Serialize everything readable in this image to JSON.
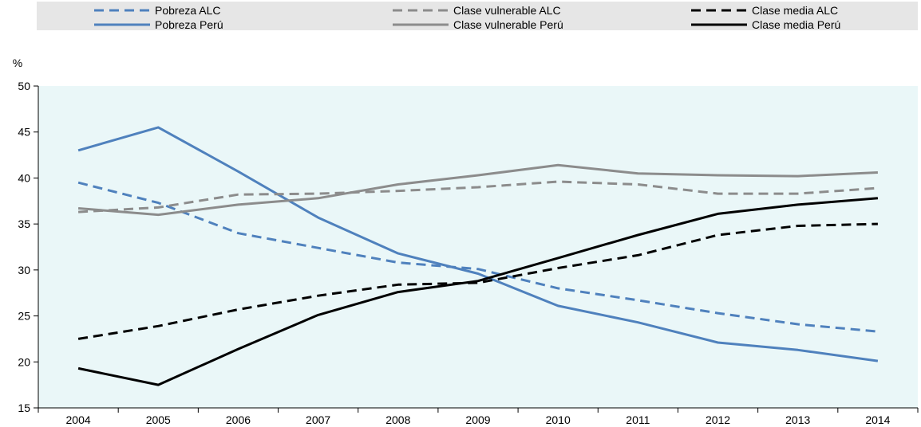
{
  "chart_data": {
    "type": "line",
    "ylabel": "%",
    "ylim": [
      15,
      50
    ],
    "yticks": [
      15,
      20,
      25,
      30,
      35,
      40,
      45,
      50
    ],
    "x": [
      "2004",
      "2005",
      "2006",
      "2007",
      "2008",
      "2009",
      "2010",
      "2011",
      "2012",
      "2013",
      "2014"
    ],
    "grid": false,
    "legend": "top",
    "background_color": "#eaf7f8",
    "legend_background_color": "#e6e6e6",
    "series": [
      {
        "name": "Pobreza ALC",
        "color": "#4f81bd",
        "dash": true,
        "values": [
          39.5,
          37.3,
          34.0,
          32.4,
          30.8,
          30.1,
          28.0,
          26.7,
          25.3,
          24.1,
          23.3
        ]
      },
      {
        "name": "Pobreza Perú",
        "color": "#4f81bd",
        "dash": false,
        "values": [
          43.0,
          45.5,
          40.7,
          35.7,
          31.8,
          29.6,
          26.1,
          24.3,
          22.1,
          21.3,
          20.1
        ]
      },
      {
        "name": "Clase vulnerable ALC",
        "color": "#8c8c8c",
        "dash": true,
        "values": [
          36.3,
          36.8,
          38.2,
          38.3,
          38.6,
          39.0,
          39.6,
          39.3,
          38.3,
          38.3,
          38.9
        ]
      },
      {
        "name": "Clase vulnerable Perú",
        "color": "#8c8c8c",
        "dash": false,
        "values": [
          36.7,
          36.0,
          37.1,
          37.8,
          39.3,
          40.3,
          41.4,
          40.5,
          40.3,
          40.2,
          40.6
        ]
      },
      {
        "name": "Clase media ALC",
        "color": "#000000",
        "dash": true,
        "values": [
          22.5,
          23.9,
          25.7,
          27.2,
          28.4,
          28.6,
          30.2,
          31.6,
          33.8,
          34.8,
          35.0
        ]
      },
      {
        "name": "Clase media Perú",
        "color": "#000000",
        "dash": false,
        "values": [
          19.3,
          17.5,
          21.4,
          25.1,
          27.6,
          28.8,
          31.3,
          33.8,
          36.1,
          37.1,
          37.8
        ]
      }
    ]
  }
}
